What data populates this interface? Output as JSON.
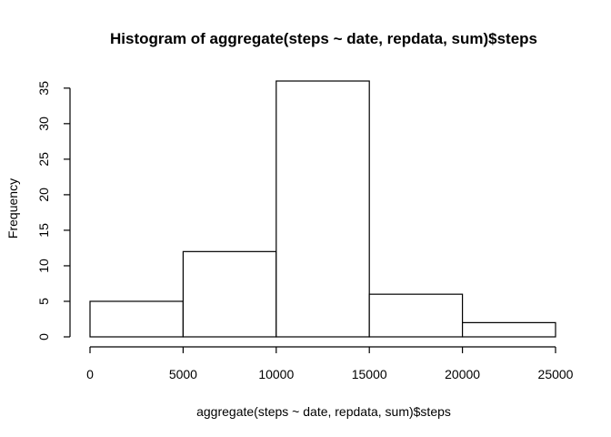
{
  "chart_data": {
    "type": "bar",
    "title": "Histogram of aggregate(steps ~ date, repdata, sum)$steps",
    "xlabel": "aggregate(steps ~ date, repdata, sum)$steps",
    "ylabel": "Frequency",
    "bins": [
      {
        "from": 0,
        "to": 5000,
        "count": 5
      },
      {
        "from": 5000,
        "to": 10000,
        "count": 12
      },
      {
        "from": 10000,
        "to": 15000,
        "count": 36
      },
      {
        "from": 15000,
        "to": 20000,
        "count": 6
      },
      {
        "from": 20000,
        "to": 25000,
        "count": 2
      }
    ],
    "xlim": [
      0,
      25000
    ],
    "ylim": [
      0,
      36
    ],
    "xticks": [
      "0",
      "5000",
      "10000",
      "15000",
      "20000",
      "25000"
    ],
    "yticks": [
      "0",
      "5",
      "10",
      "15",
      "20",
      "25",
      "30",
      "35"
    ],
    "grid": false,
    "bar_fill": "#ffffff",
    "bar_stroke": "#000000"
  }
}
